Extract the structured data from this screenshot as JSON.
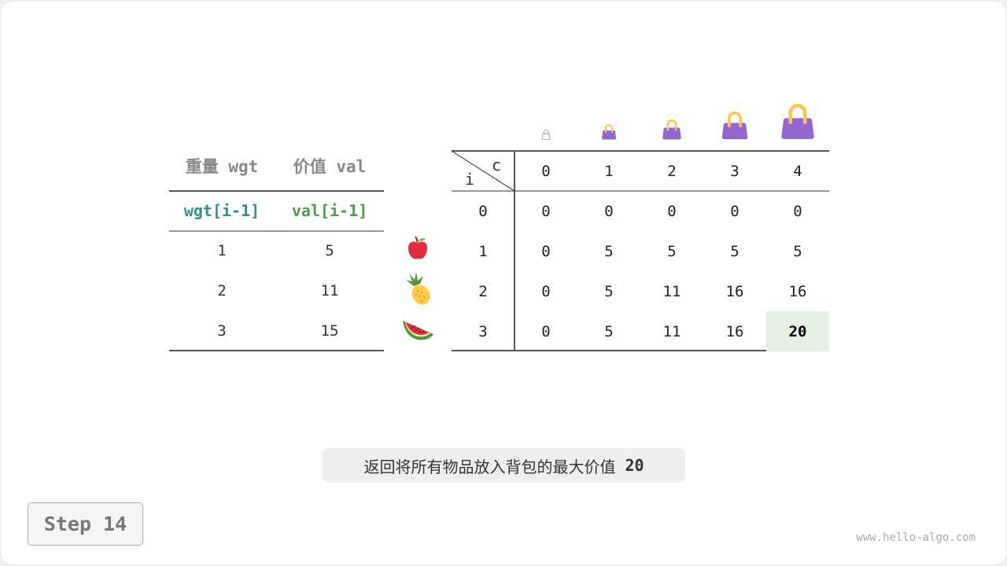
{
  "items_table": {
    "headers": [
      "重量 wgt",
      "价值 val"
    ],
    "subheaders": [
      "wgt[i-1]",
      "val[i-1]"
    ],
    "rows": [
      {
        "wgt": "1",
        "val": "5",
        "icon": "apple-icon"
      },
      {
        "wgt": "2",
        "val": "11",
        "icon": "pineapple-icon"
      },
      {
        "wgt": "3",
        "val": "15",
        "icon": "watermelon-icon"
      }
    ],
    "subheader_colors": [
      "#3a8f85",
      "#4e9a4e"
    ]
  },
  "dp_table": {
    "row_axis": "i",
    "col_axis": "c",
    "col_headers": [
      "0",
      "1",
      "2",
      "3",
      "4"
    ],
    "row_headers": [
      "0",
      "1",
      "2",
      "3"
    ],
    "cells": [
      [
        "0",
        "0",
        "0",
        "0",
        "0"
      ],
      [
        "0",
        "5",
        "5",
        "5",
        "5"
      ],
      [
        "0",
        "5",
        "11",
        "16",
        "16"
      ],
      [
        "0",
        "5",
        "11",
        "16",
        "20"
      ]
    ],
    "highlight": {
      "row": 3,
      "col": 4,
      "color": "#e3f0e3"
    },
    "bag_icons": [
      "bag-capacity-0-icon",
      "bag-capacity-1-icon",
      "bag-capacity-2-icon",
      "bag-capacity-3-icon",
      "bag-capacity-4-icon"
    ]
  },
  "caption": {
    "text": "返回将所有物品放入背包的最大价值",
    "value": "20"
  },
  "step": {
    "label": "Step 14"
  },
  "watermark": "www.hello-algo.com"
}
